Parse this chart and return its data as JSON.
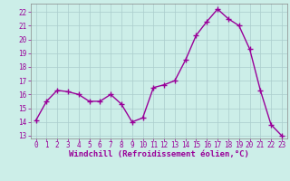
{
  "x": [
    0,
    1,
    2,
    3,
    4,
    5,
    6,
    7,
    8,
    9,
    10,
    11,
    12,
    13,
    14,
    15,
    16,
    17,
    18,
    19,
    20,
    21,
    22,
    23
  ],
  "y": [
    14.1,
    15.5,
    16.3,
    16.2,
    16.0,
    15.5,
    15.5,
    16.0,
    15.3,
    14.0,
    14.3,
    16.5,
    16.7,
    17.0,
    18.5,
    20.3,
    21.3,
    22.2,
    21.5,
    21.0,
    19.3,
    16.3,
    13.8,
    13.0
  ],
  "line_color": "#990099",
  "marker": "+",
  "markersize": 4,
  "linewidth": 1.0,
  "background_color": "#cceee8",
  "grid_color": "#aacccc",
  "xlabel": "Windchill (Refroidissement éolien,°C)",
  "xlim": [
    -0.5,
    23.5
  ],
  "ylim": [
    12.8,
    22.6
  ],
  "yticks": [
    13,
    14,
    15,
    16,
    17,
    18,
    19,
    20,
    21,
    22
  ],
  "xticks": [
    0,
    1,
    2,
    3,
    4,
    5,
    6,
    7,
    8,
    9,
    10,
    11,
    12,
    13,
    14,
    15,
    16,
    17,
    18,
    19,
    20,
    21,
    22,
    23
  ],
  "tick_color": "#990099",
  "tick_fontsize": 5.5,
  "xlabel_fontsize": 6.5,
  "xlabel_color": "#990099",
  "markeredgewidth": 1.0
}
